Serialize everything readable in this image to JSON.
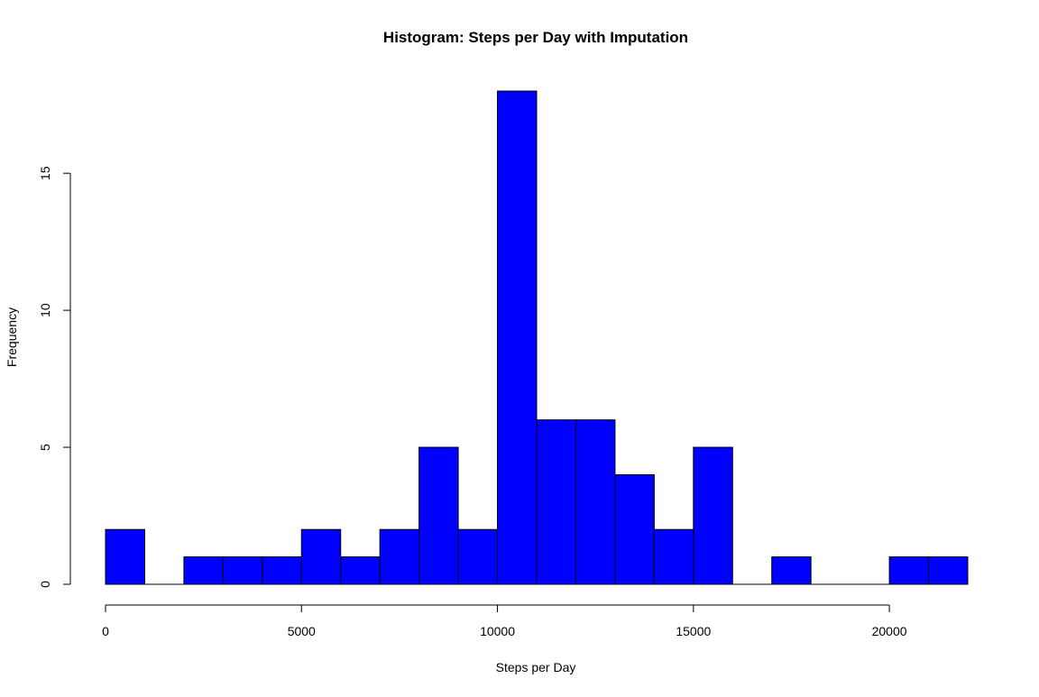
{
  "chart_data": {
    "type": "bar",
    "subtype": "histogram",
    "title": "Histogram: Steps per Day with Imputation",
    "xlabel": "Steps per Day",
    "ylabel": "Frequency",
    "bin_edges": [
      0,
      1000,
      2000,
      3000,
      4000,
      5000,
      6000,
      7000,
      8000,
      9000,
      10000,
      11000,
      12000,
      13000,
      14000,
      15000,
      16000,
      17000,
      18000,
      19000,
      20000,
      21000,
      22000
    ],
    "values": [
      2,
      0,
      1,
      1,
      1,
      2,
      1,
      2,
      5,
      2,
      18,
      6,
      6,
      4,
      2,
      5,
      0,
      1,
      0,
      0,
      1,
      1
    ],
    "xlim": [
      0,
      22000
    ],
    "ylim": [
      0,
      18
    ],
    "x_ticks": [
      0,
      5000,
      10000,
      15000,
      20000
    ],
    "x_tick_labels": [
      "0",
      "5000",
      "10000",
      "15000",
      "20000"
    ],
    "y_ticks": [
      0,
      5,
      10,
      15
    ],
    "y_tick_labels": [
      "0",
      "5",
      "10",
      "15"
    ],
    "bar_color": "#0000ff",
    "bar_border_color": "#000000",
    "grid": false,
    "legend": "none"
  }
}
